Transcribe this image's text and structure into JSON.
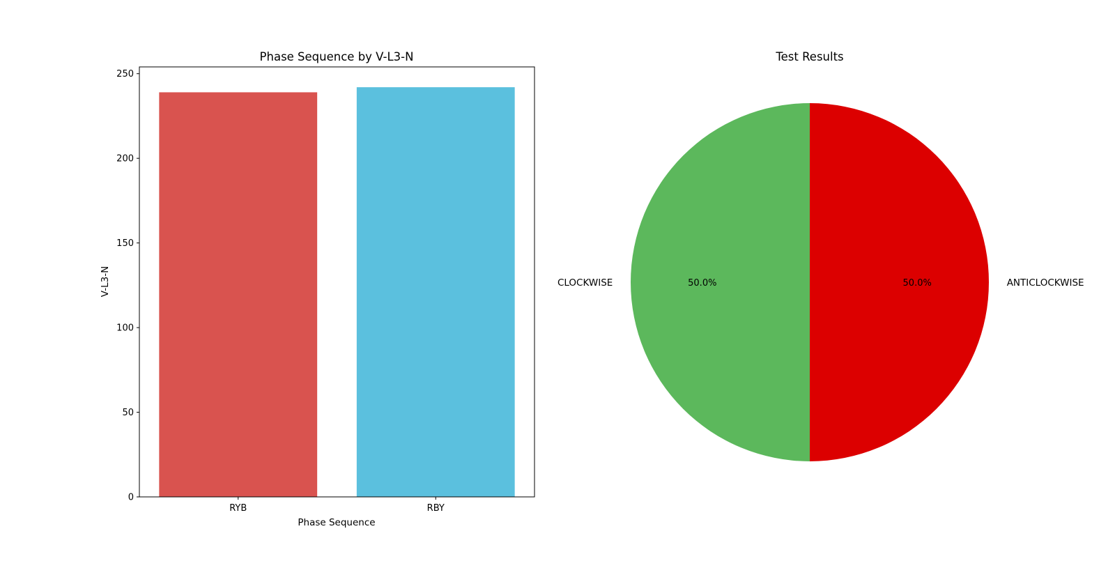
{
  "chart_data": [
    {
      "type": "bar",
      "title": "Phase Sequence by V-L3-N",
      "xlabel": "Phase Sequence",
      "ylabel": "V-L3-N",
      "categories": [
        "RYB",
        "RBY"
      ],
      "values": [
        239,
        242
      ],
      "colors": [
        "#d9534f",
        "#5bc0de"
      ],
      "ylim": [
        0,
        254
      ],
      "yticks": [
        0,
        50,
        100,
        150,
        200,
        250
      ],
      "grid": false
    },
    {
      "type": "pie",
      "title": "Test Results",
      "labels": [
        "CLOCKWISE",
        "ANTICLOCKWISE"
      ],
      "values": [
        50,
        50
      ],
      "percent_labels": [
        "50.0%",
        "50.0%"
      ],
      "colors": [
        "#5cb85c",
        "#dc0000"
      ]
    }
  ]
}
